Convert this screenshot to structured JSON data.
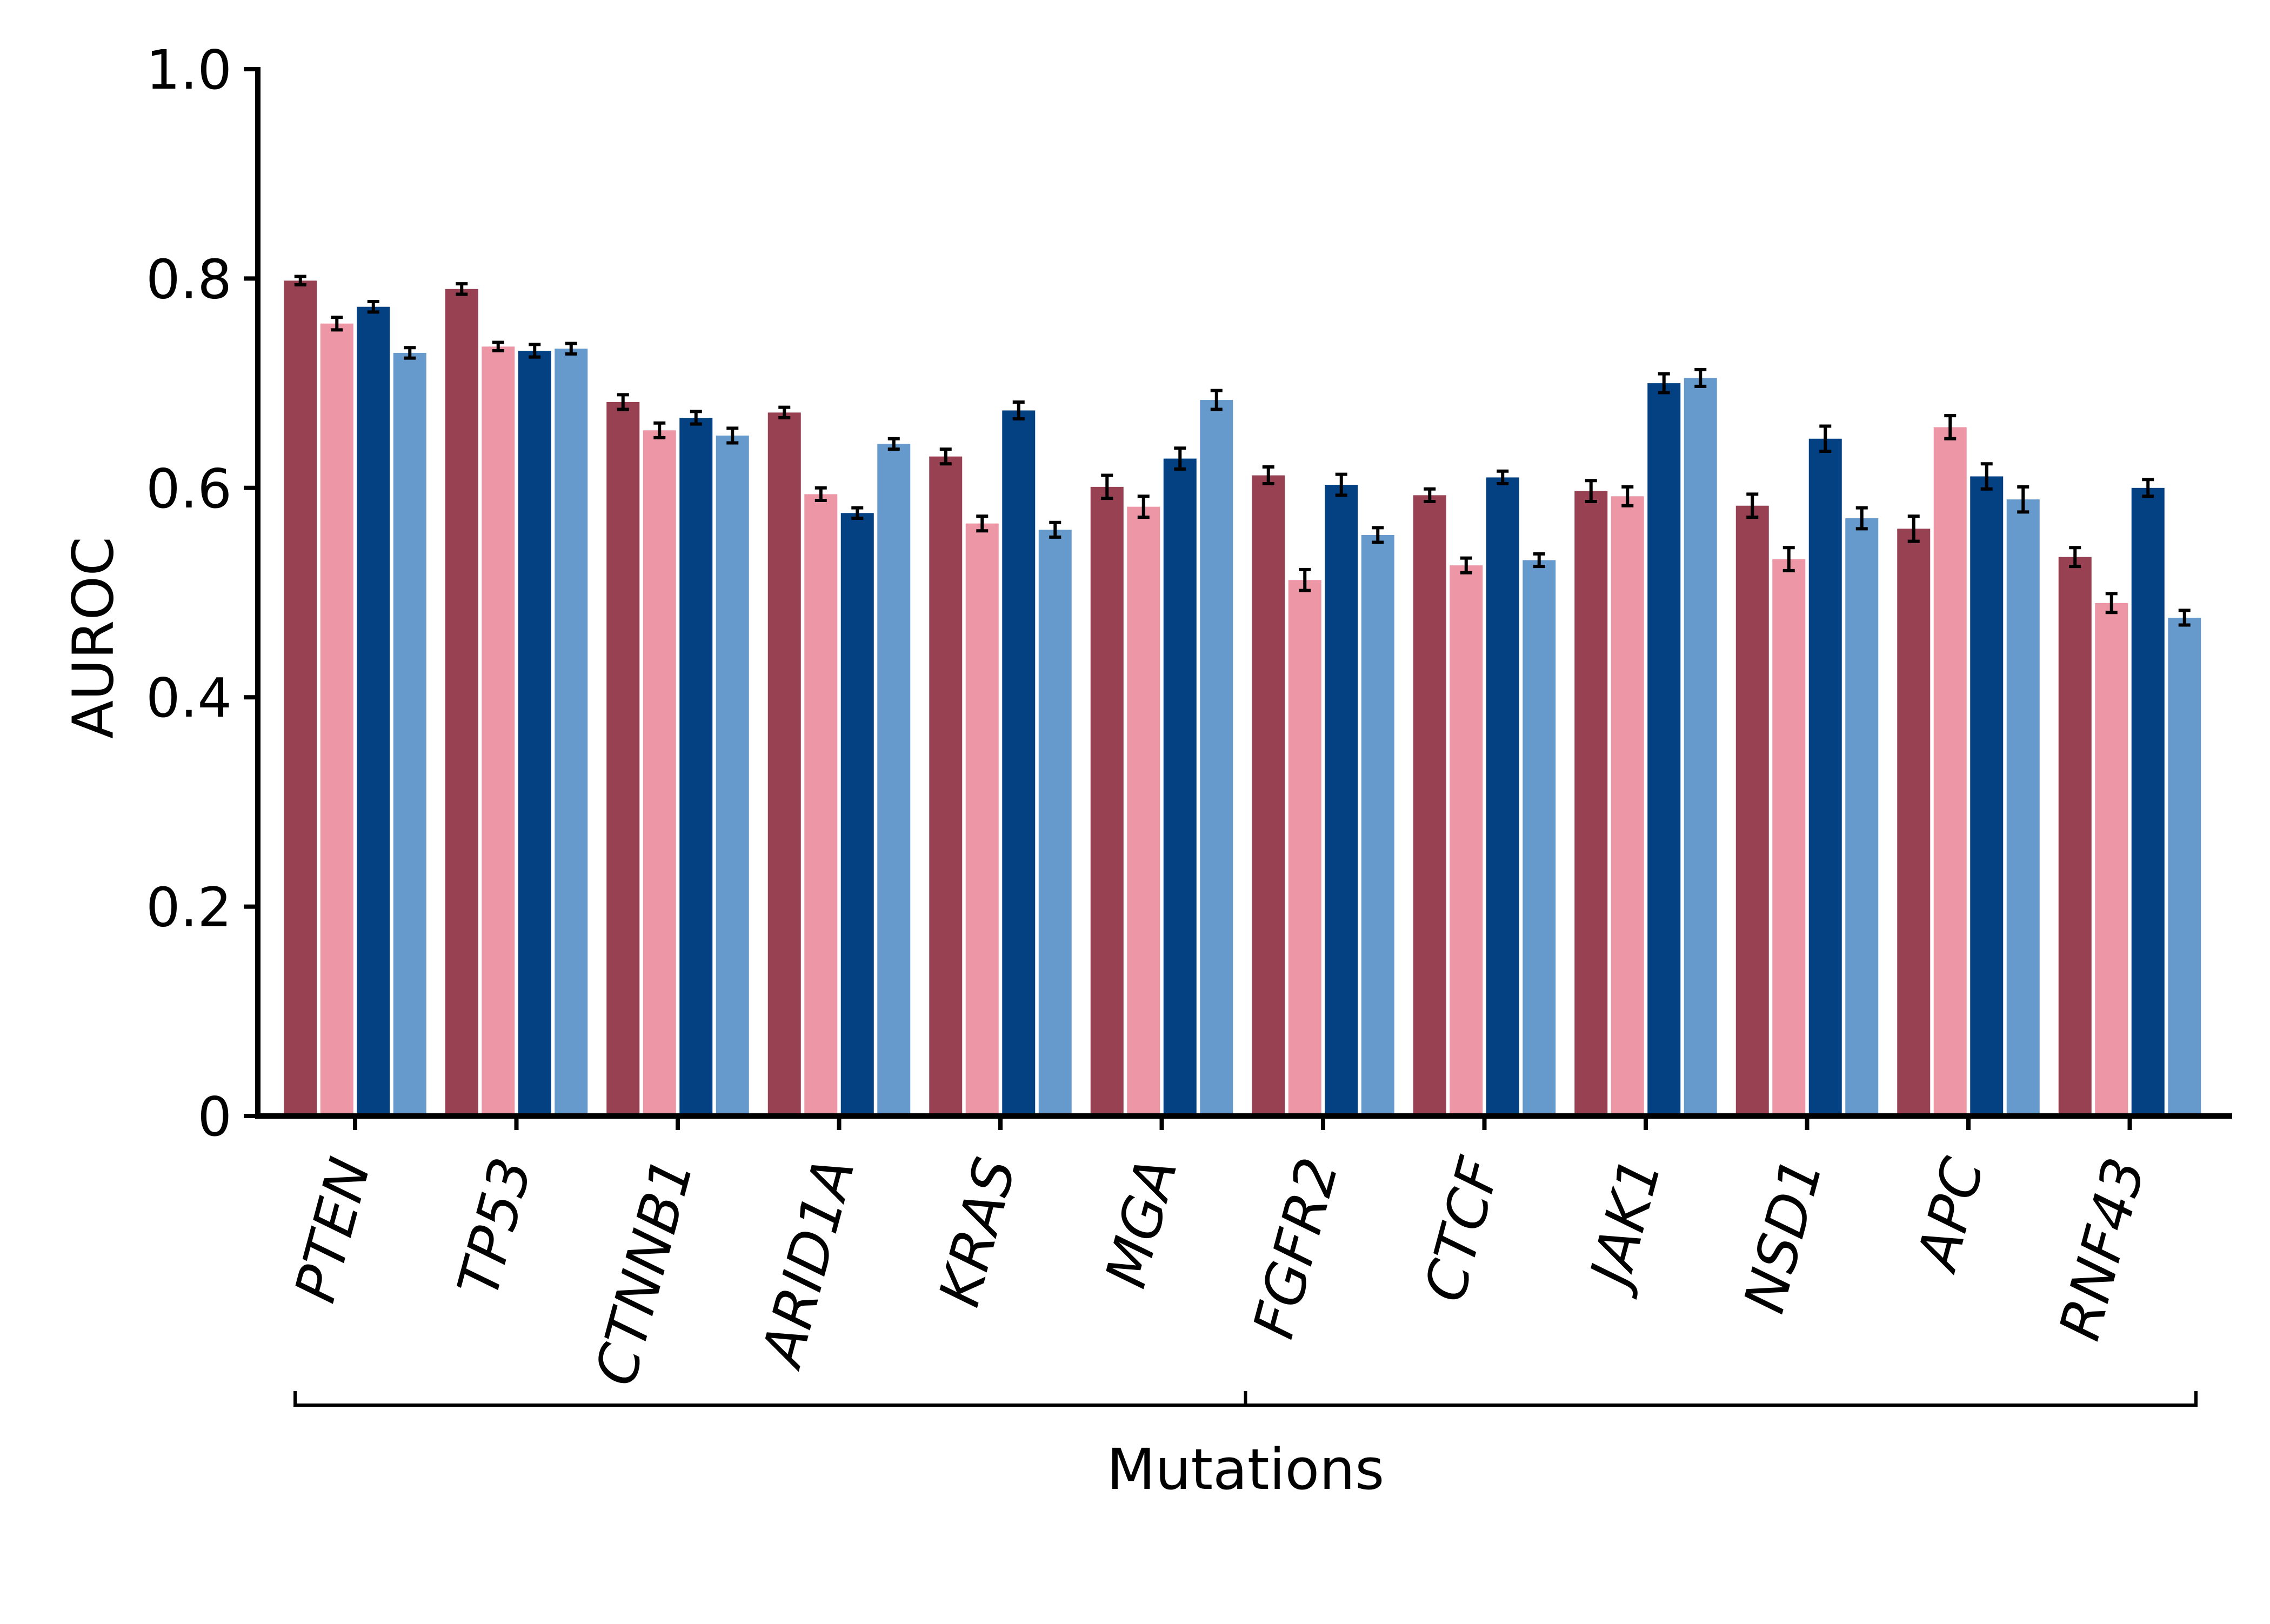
{
  "chart_data": {
    "type": "bar",
    "ylabel": "AUROC",
    "xlabel": "Mutations",
    "ylim": [
      0,
      1.0
    ],
    "yticks": [
      {
        "value": 0,
        "label": "0"
      },
      {
        "value": 0.2,
        "label": "0.2"
      },
      {
        "value": 0.4,
        "label": "0.4"
      },
      {
        "value": 0.6,
        "label": "0.6"
      },
      {
        "value": 0.8,
        "label": "0.8"
      },
      {
        "value": 1.0,
        "label": "1.0"
      }
    ],
    "grid": false,
    "legend": "none",
    "categories": [
      "PTEN",
      "TP53",
      "CTNNB1",
      "ARID1A",
      "KRAS",
      "MGA",
      "FGFR2",
      "CTCF",
      "JAK1",
      "NSD1",
      "APC",
      "RNF43"
    ],
    "series": [
      {
        "color": "#974153",
        "values": [
          0.798,
          0.79,
          0.682,
          0.672,
          0.63,
          0.601,
          0.612,
          0.593,
          0.597,
          0.583,
          0.561,
          0.534
        ],
        "errors": [
          0.004,
          0.005,
          0.007,
          0.005,
          0.007,
          0.011,
          0.008,
          0.006,
          0.01,
          0.011,
          0.012,
          0.009
        ]
      },
      {
        "color": "#EC96A6",
        "values": [
          0.757,
          0.735,
          0.655,
          0.594,
          0.566,
          0.582,
          0.512,
          0.526,
          0.592,
          0.532,
          0.658,
          0.49
        ],
        "errors": [
          0.006,
          0.004,
          0.007,
          0.006,
          0.007,
          0.01,
          0.01,
          0.007,
          0.009,
          0.011,
          0.011,
          0.009
        ]
      },
      {
        "color": "#034182",
        "values": [
          0.773,
          0.731,
          0.667,
          0.576,
          0.674,
          0.628,
          0.603,
          0.61,
          0.7,
          0.647,
          0.611,
          0.6
        ],
        "errors": [
          0.005,
          0.006,
          0.006,
          0.005,
          0.008,
          0.01,
          0.01,
          0.006,
          0.009,
          0.012,
          0.012,
          0.008
        ]
      },
      {
        "color": "#6699CC",
        "values": [
          0.729,
          0.733,
          0.65,
          0.642,
          0.56,
          0.684,
          0.555,
          0.531,
          0.705,
          0.571,
          0.589,
          0.476
        ],
        "errors": [
          0.005,
          0.005,
          0.007,
          0.005,
          0.007,
          0.009,
          0.007,
          0.006,
          0.008,
          0.01,
          0.012,
          0.007
        ]
      }
    ]
  }
}
